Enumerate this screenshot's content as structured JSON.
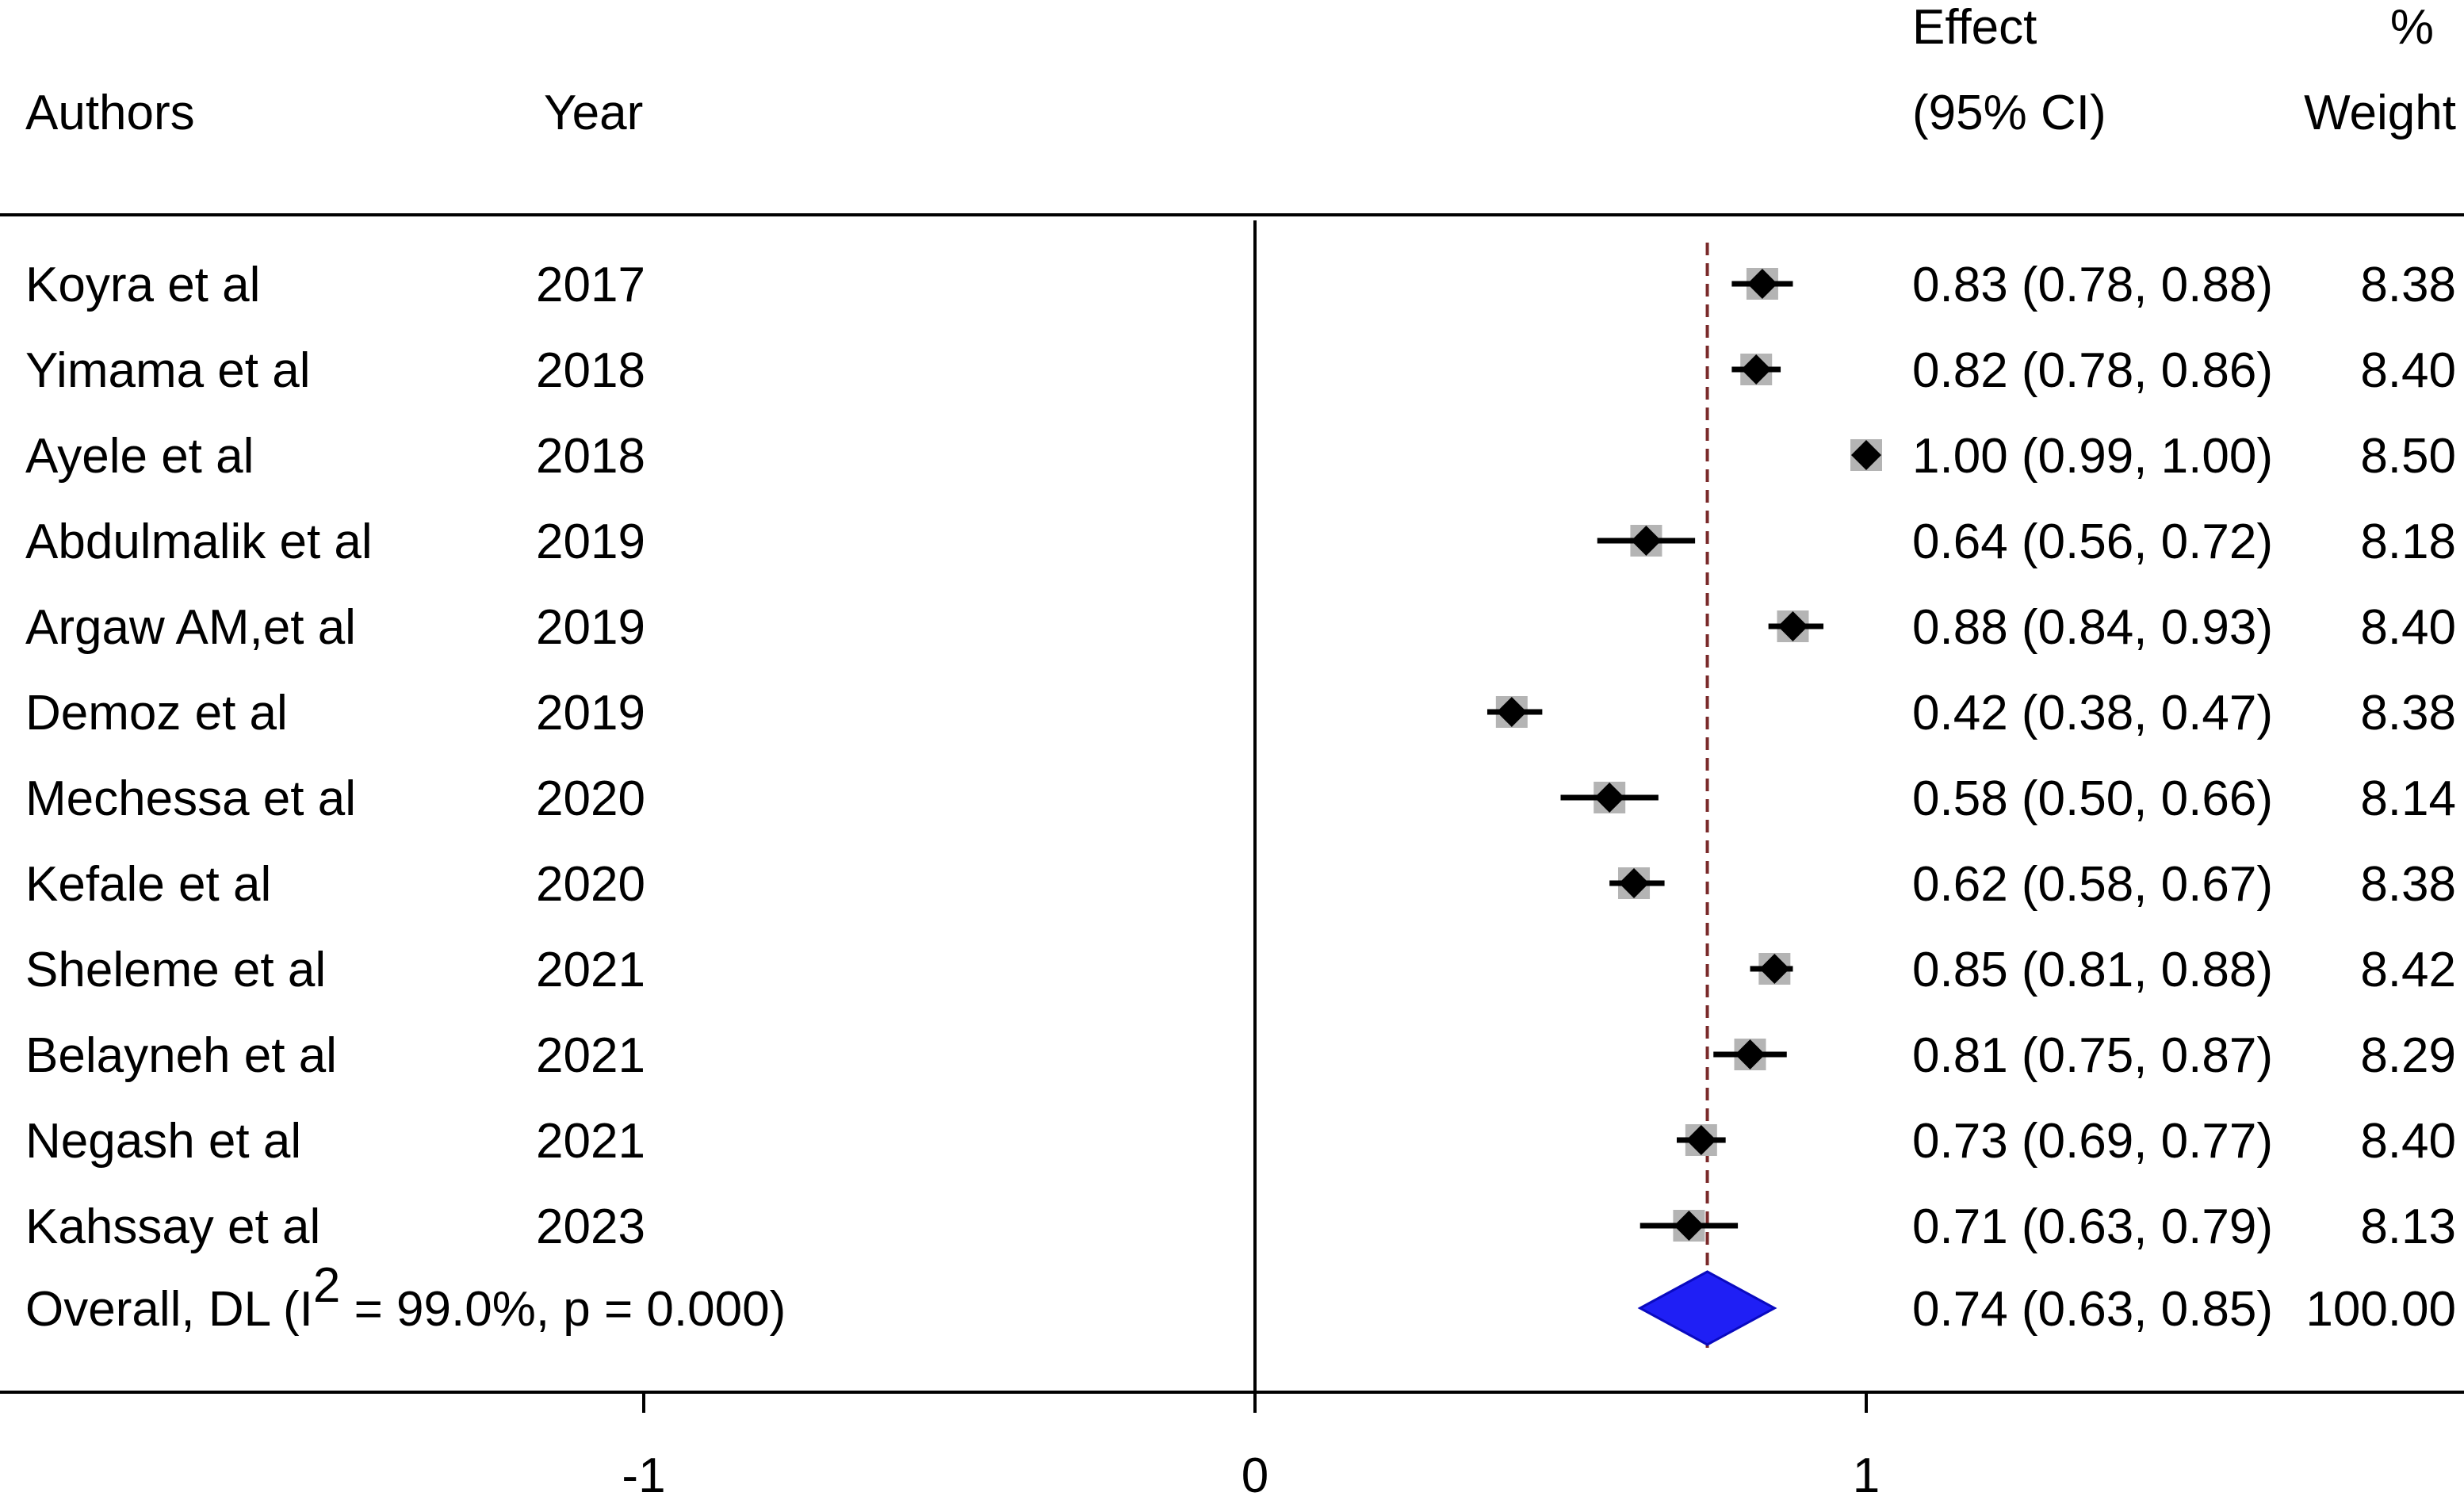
{
  "header": {
    "authors_label": "Authors",
    "year_label": "Year",
    "effect_label": "Effect",
    "ci_label": "(95% CI)",
    "percent_label": "%",
    "weight_label": "Weight"
  },
  "overall": {
    "label_prefix": "Overall, DL (I",
    "label_superscript": "2",
    "label_suffix": " = 99.0%, p = 0.000)",
    "effect": 0.74,
    "ci_low": 0.63,
    "ci_high": 0.85,
    "effect_text": "0.74 (0.63, 0.85)",
    "weight_text": "100.00",
    "diamond_color": "#1f1ff5"
  },
  "chart_data": {
    "type": "forest",
    "title": "",
    "xlabel": "",
    "xlim": [
      -2,
      2
    ],
    "x_ticks": [
      -1,
      0,
      1
    ],
    "x_tick_labels": [
      "-1",
      "0",
      "1"
    ],
    "null_line": 0,
    "pooled_line": 0.74,
    "studies": [
      {
        "author": "Koyra et al",
        "year": "2017",
        "effect": 0.83,
        "ci_low": 0.78,
        "ci_high": 0.88,
        "effect_text": "0.83 (0.78, 0.88)",
        "weight": "8.38"
      },
      {
        "author": "Yimama et al",
        "year": "2018",
        "effect": 0.82,
        "ci_low": 0.78,
        "ci_high": 0.86,
        "effect_text": "0.82 (0.78, 0.86)",
        "weight": "8.40"
      },
      {
        "author": "Ayele et al",
        "year": "2018",
        "effect": 1.0,
        "ci_low": 0.99,
        "ci_high": 1.0,
        "effect_text": "1.00 (0.99, 1.00)",
        "weight": "8.50"
      },
      {
        "author": "Abdulmalik et al",
        "year": "2019",
        "effect": 0.64,
        "ci_low": 0.56,
        "ci_high": 0.72,
        "effect_text": "0.64 (0.56, 0.72)",
        "weight": "8.18"
      },
      {
        "author": "Argaw AM,et al",
        "year": "2019",
        "effect": 0.88,
        "ci_low": 0.84,
        "ci_high": 0.93,
        "effect_text": "0.88 (0.84, 0.93)",
        "weight": "8.40"
      },
      {
        "author": "Demoz et al",
        "year": "2019",
        "effect": 0.42,
        "ci_low": 0.38,
        "ci_high": 0.47,
        "effect_text": "0.42 (0.38, 0.47)",
        "weight": "8.38"
      },
      {
        "author": "Mechessa et al",
        "year": "2020",
        "effect": 0.58,
        "ci_low": 0.5,
        "ci_high": 0.66,
        "effect_text": "0.58 (0.50, 0.66)",
        "weight": "8.14"
      },
      {
        "author": "Kefale et al",
        "year": "2020",
        "effect": 0.62,
        "ci_low": 0.58,
        "ci_high": 0.67,
        "effect_text": "0.62 (0.58, 0.67)",
        "weight": "8.38"
      },
      {
        "author": "Sheleme et al",
        "year": "2021",
        "effect": 0.85,
        "ci_low": 0.81,
        "ci_high": 0.88,
        "effect_text": "0.85 (0.81, 0.88)",
        "weight": "8.42"
      },
      {
        "author": "Belayneh et al",
        "year": "2021",
        "effect": 0.81,
        "ci_low": 0.75,
        "ci_high": 0.87,
        "effect_text": "0.81 (0.75, 0.87)",
        "weight": "8.29"
      },
      {
        "author": "Negash et al",
        "year": "2021",
        "effect": 0.73,
        "ci_low": 0.69,
        "ci_high": 0.77,
        "effect_text": "0.73 (0.69, 0.77)",
        "weight": "8.40"
      },
      {
        "author": "Kahssay et al",
        "year": "2023",
        "effect": 0.71,
        "ci_low": 0.63,
        "ci_high": 0.79,
        "effect_text": "0.71 (0.63, 0.79)",
        "weight": "8.13"
      }
    ]
  },
  "colors": {
    "marker": "#000000",
    "weight_box": "#b4b4b4",
    "pooled_line": "#7a2a2a",
    "axis": "#000000"
  }
}
